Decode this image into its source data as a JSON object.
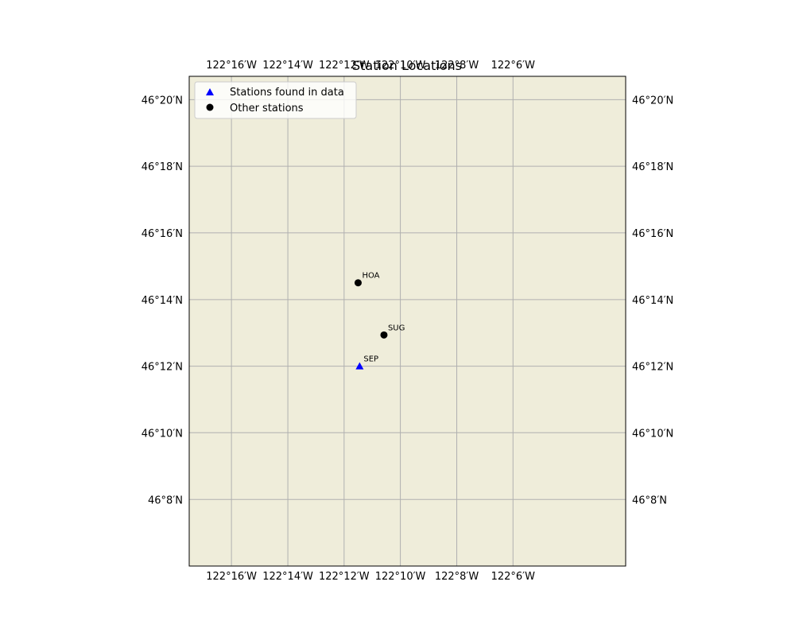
{
  "title": "Station Locations",
  "colors": {
    "land": "#efedda",
    "grid": "#b0b0b0",
    "found_marker": "#0000ff",
    "other_marker": "#000000"
  },
  "chart_data": {
    "type": "scatter",
    "title": "Station Locations",
    "projection": "geographic",
    "grid": true,
    "legend_position": "top-left",
    "lon_range": [
      -122.2917,
      -122.0333
    ],
    "lat_range": [
      46.1,
      46.345
    ],
    "lon_ticks": [
      {
        "value": -122.2667,
        "label": "122°16′W"
      },
      {
        "value": -122.2333,
        "label": "122°14′W"
      },
      {
        "value": -122.2,
        "label": "122°12′W"
      },
      {
        "value": -122.1667,
        "label": "122°10′W"
      },
      {
        "value": -122.1333,
        "label": "122°8′W"
      },
      {
        "value": -122.1,
        "label": "122°6′W"
      }
    ],
    "lat_ticks": [
      {
        "value": 46.1333,
        "label": "46°8′N"
      },
      {
        "value": 46.1667,
        "label": "46°10′N"
      },
      {
        "value": 46.2,
        "label": "46°12′N"
      },
      {
        "value": 46.2333,
        "label": "46°14′N"
      },
      {
        "value": 46.2667,
        "label": "46°16′N"
      },
      {
        "value": 46.3,
        "label": "46°18′N"
      },
      {
        "value": 46.3333,
        "label": "46°20′N"
      }
    ],
    "series": [
      {
        "name": "Stations found in data",
        "marker": "triangle",
        "color": "#0000ff",
        "points": [
          {
            "label": "SEP",
            "lon": -122.1908,
            "lat": 46.2
          }
        ]
      },
      {
        "name": "Other stations",
        "marker": "circle",
        "color": "#000000",
        "points": [
          {
            "label": "HOA",
            "lon": -122.1917,
            "lat": 46.2417
          },
          {
            "label": "SUG",
            "lon": -122.1764,
            "lat": 46.2156
          }
        ]
      }
    ]
  }
}
